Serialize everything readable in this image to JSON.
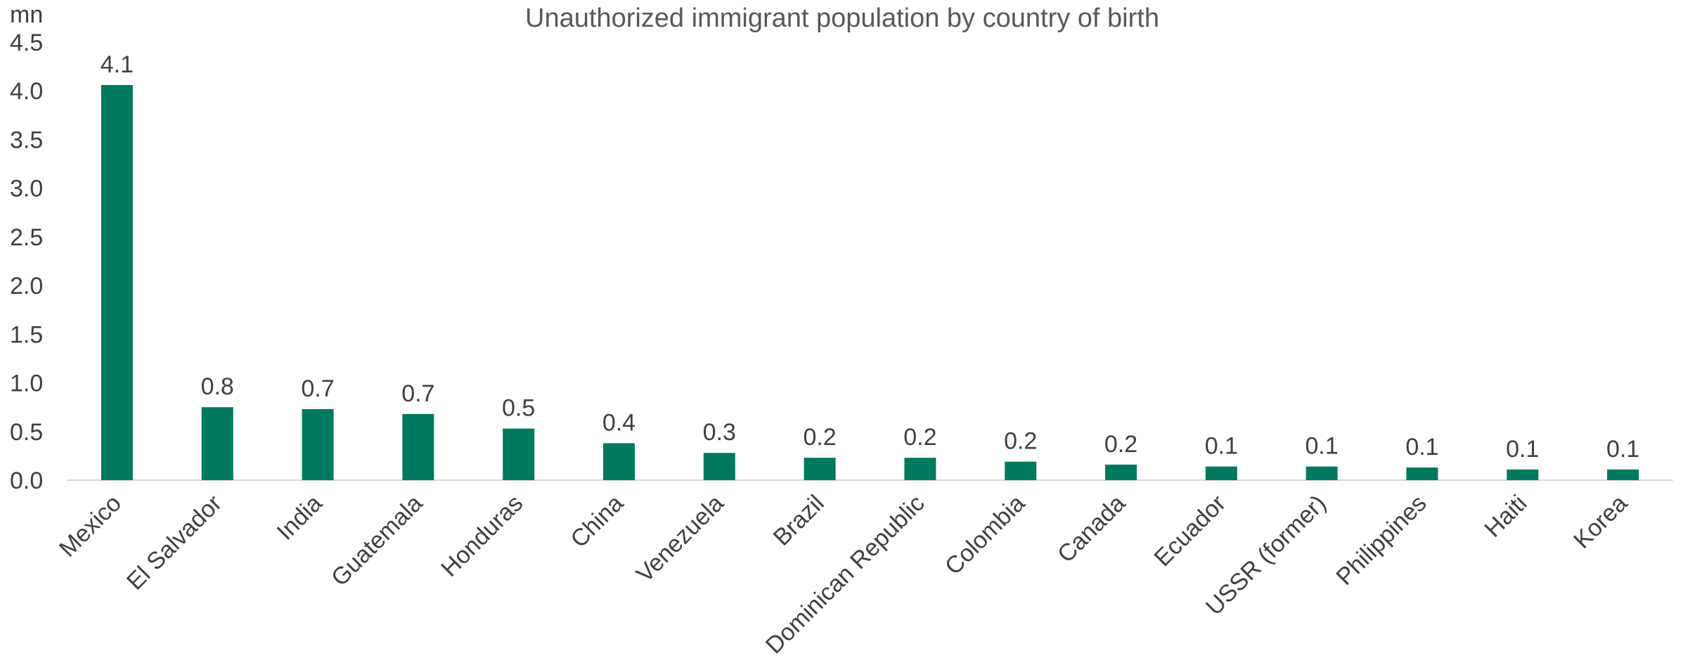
{
  "chart_data": {
    "type": "bar",
    "title": "Unauthorized immigrant population by country of birth",
    "unit_label": "mn",
    "xlabel": "",
    "ylabel": "",
    "ylim": [
      0,
      4.5
    ],
    "y_ticks": [
      "0.0",
      "0.5",
      "1.0",
      "1.5",
      "2.0",
      "2.5",
      "3.0",
      "3.5",
      "4.0",
      "4.5"
    ],
    "grid": false,
    "legend": "none",
    "bar_color": "#007A5E",
    "categories": [
      "Mexico",
      "El Salvador",
      "India",
      "Guatemala",
      "Honduras",
      "China",
      "Venezuela",
      "Brazil",
      "Dominican Republic",
      "Colombia",
      "Canada",
      "Ecuador",
      "USSR (former)",
      "Philippines",
      "Haiti",
      "Korea"
    ],
    "values": [
      4.06,
      0.75,
      0.73,
      0.68,
      0.53,
      0.38,
      0.28,
      0.23,
      0.23,
      0.19,
      0.16,
      0.14,
      0.14,
      0.13,
      0.11,
      0.11
    ],
    "data_labels": [
      "4.1",
      "0.8",
      "0.7",
      "0.7",
      "0.5",
      "0.4",
      "0.3",
      "0.2",
      "0.2",
      "0.2",
      "0.2",
      "0.1",
      "0.1",
      "0.1",
      "0.1",
      "0.1"
    ]
  }
}
